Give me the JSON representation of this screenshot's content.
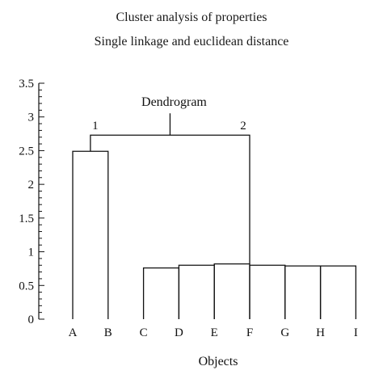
{
  "title": "Cluster analysis of properties",
  "subtitle": "Single linkage and euclidean distance",
  "chart_data": {
    "type": "dendrogram",
    "title": "Cluster analysis of properties",
    "subtitle": "Single linkage and euclidean distance",
    "xlabel": "Objects",
    "ylabel": "",
    "ylim": [
      0,
      3.5
    ],
    "yticks": [
      "0",
      "0.5",
      "1",
      "1.5",
      "2",
      "2.5",
      "3",
      "3.5"
    ],
    "leaves": [
      "A",
      "B",
      "C",
      "D",
      "E",
      "F",
      "G",
      "H",
      "I"
    ],
    "annotation": "Dendrogram",
    "cluster_labels": [
      "1",
      "2"
    ],
    "merges": [
      {
        "left": "A",
        "right": "B",
        "height": 2.49
      },
      {
        "left": "C",
        "right": "D",
        "height": 0.76
      },
      {
        "left": "D",
        "right": "E",
        "height": 0.8
      },
      {
        "left": "E",
        "right": "F",
        "height": 0.82
      },
      {
        "left": "F",
        "right": "G",
        "height": 0.8
      },
      {
        "left": "G",
        "right": "H",
        "height": 0.79
      },
      {
        "left": "H",
        "right": "I",
        "height": 0.79
      },
      {
        "left": "cluster 1",
        "right": "cluster 2",
        "height": 2.73
      }
    ],
    "grid": false
  }
}
